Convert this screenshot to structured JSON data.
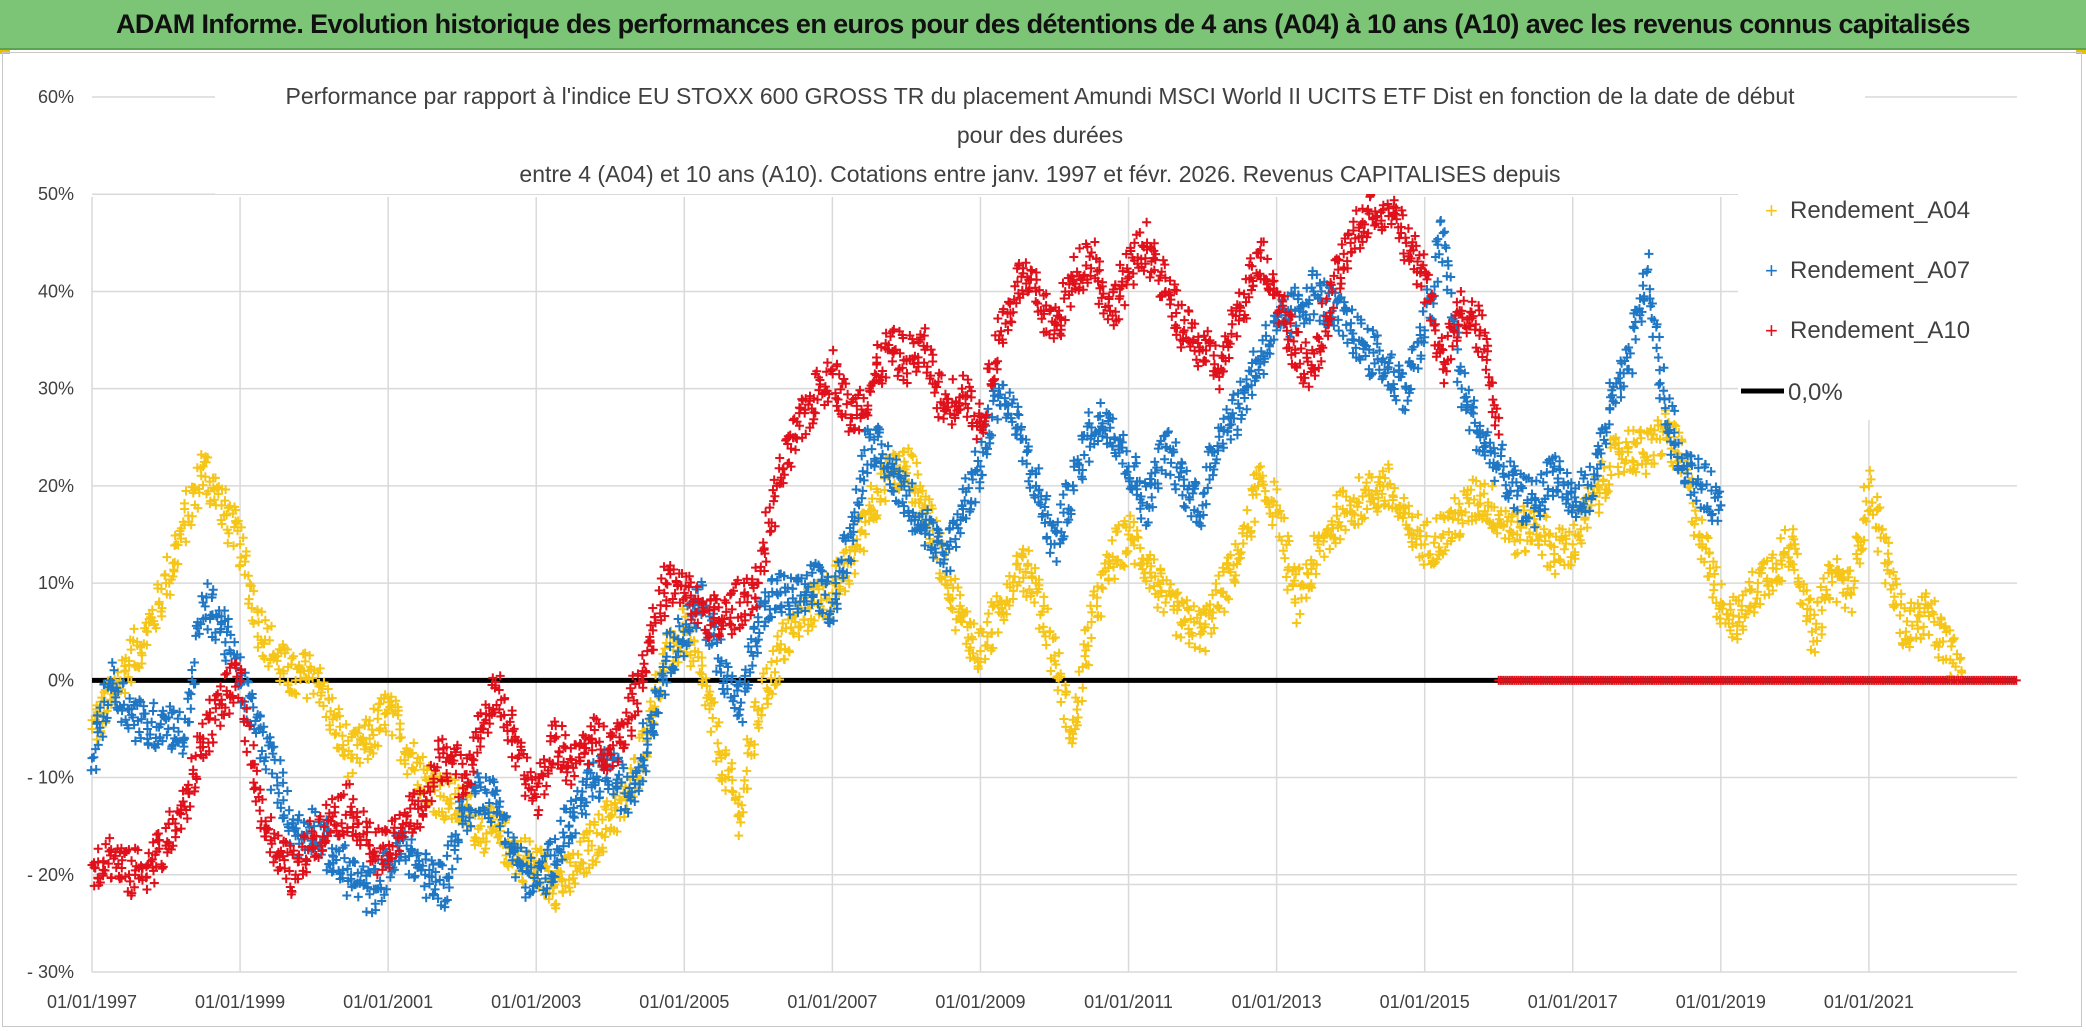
{
  "banner": {
    "title": "ADAM Informe. Evolution historique des performances en euros pour des détentions de 4 ans (A04) à 10 ans (A10) avec les revenus connus capitalisés"
  },
  "chart_data": {
    "type": "scatter",
    "title_lines": [
      "Performance par rapport à l'indice EU STOXX 600 GROSS TR  du placement Amundi MSCI World II UCITS ETF Dist en fonction de la date de début",
      "pour des durées",
      "entre 4 (A04) et 10 ans (A10). Cotations entre janv. 1997 et févr. 2026. Revenus CAPITALISES depuis"
    ],
    "x_tick_labels": [
      "01/01/1997",
      "01/01/1999",
      "01/01/2001",
      "01/01/2003",
      "01/01/2005",
      "01/01/2007",
      "01/01/2009",
      "01/01/2011",
      "01/01/2013",
      "01/01/2015",
      "01/01/2017",
      "01/01/2019",
      "01/01/2021"
    ],
    "xlim": [
      1997.0,
      2023.0
    ],
    "y_tick_labels": [
      "60%",
      "50%",
      "40%",
      "30%",
      "20%",
      "10%",
      "0%",
      "- 10%",
      "- 20%",
      "- 30%"
    ],
    "y_tick_values": [
      60,
      50,
      40,
      30,
      20,
      10,
      0,
      -10,
      -20,
      -30
    ],
    "ylim": [
      -30,
      60
    ],
    "ylabel": "",
    "xlabel": "",
    "grid": true,
    "legend_position": "top-right",
    "series": [
      {
        "name": "Rendement_A04",
        "color": "#f5c518",
        "marker": "+",
        "x": [
          1997.0,
          1997.25,
          1997.5,
          1997.75,
          1998.0,
          1998.25,
          1998.5,
          1998.75,
          1999.0,
          1999.25,
          1999.5,
          1999.75,
          2000.0,
          2000.25,
          2000.5,
          2000.75,
          2001.0,
          2001.25,
          2001.5,
          2001.75,
          2002.0,
          2002.25,
          2002.5,
          2002.75,
          2003.0,
          2003.25,
          2003.5,
          2003.75,
          2004.0,
          2004.25,
          2004.5,
          2004.75,
          2005.0,
          2005.25,
          2005.5,
          2005.75,
          2006.0,
          2006.25,
          2006.5,
          2006.75,
          2007.0,
          2007.25,
          2007.5,
          2007.75,
          2008.0,
          2008.25,
          2008.5,
          2008.75,
          2009.0,
          2009.25,
          2009.5,
          2009.75,
          2010.0,
          2010.25,
          2010.5,
          2010.75,
          2011.0,
          2011.25,
          2011.5,
          2011.75,
          2012.0,
          2012.25,
          2012.5,
          2012.75,
          2013.0,
          2013.25,
          2013.5,
          2013.75,
          2014.0,
          2014.25,
          2014.5,
          2014.75,
          2015.0,
          2015.25,
          2015.5,
          2015.75,
          2016.0,
          2016.25,
          2016.5,
          2016.75,
          2017.0,
          2017.25,
          2017.5,
          2017.75,
          2018.0,
          2018.25,
          2018.5,
          2018.75,
          2019.0,
          2019.25,
          2019.5,
          2019.75,
          2020.0,
          2020.25,
          2020.5,
          2020.75,
          2021.0,
          2021.25,
          2021.5,
          2021.75,
          2022.0,
          2022.25
        ],
        "y": [
          -5,
          -2,
          2,
          5,
          10,
          16,
          22,
          18,
          14,
          6,
          2,
          0,
          1,
          -4,
          -8,
          -6,
          -3,
          -7,
          -10,
          -12,
          -13,
          -15,
          -16,
          -18,
          -19,
          -21,
          -20,
          -17,
          -14,
          -12,
          -5,
          2,
          5,
          0,
          -8,
          -14,
          -3,
          2,
          6,
          8,
          9,
          12,
          18,
          21,
          22,
          18,
          12,
          6,
          3,
          7,
          12,
          10,
          2,
          -6,
          6,
          12,
          15,
          12,
          8,
          6,
          5,
          9,
          13,
          20,
          18,
          8,
          12,
          16,
          18,
          19,
          20,
          16,
          14,
          15,
          17,
          19,
          17,
          15,
          16,
          13,
          14,
          18,
          22,
          24,
          23,
          26,
          22,
          14,
          8,
          6,
          10,
          12,
          14,
          4,
          11,
          9,
          20,
          12,
          5,
          7,
          4,
          1
        ]
      },
      {
        "name": "Rendement_A07",
        "color": "#1f77c4",
        "marker": "+",
        "x": [
          1997.0,
          1997.25,
          1997.5,
          1997.75,
          1998.0,
          1998.25,
          1998.5,
          1998.75,
          1999.0,
          1999.25,
          1999.5,
          1999.75,
          2000.0,
          2000.25,
          2000.5,
          2000.75,
          2001.0,
          2001.25,
          2001.5,
          2001.75,
          2002.0,
          2002.25,
          2002.5,
          2002.75,
          2003.0,
          2003.25,
          2003.5,
          2003.75,
          2004.0,
          2004.25,
          2004.5,
          2004.75,
          2005.0,
          2005.25,
          2005.5,
          2005.75,
          2006.0,
          2006.25,
          2006.5,
          2006.75,
          2007.0,
          2007.25,
          2007.5,
          2007.75,
          2008.0,
          2008.25,
          2008.5,
          2008.75,
          2009.0,
          2009.25,
          2009.5,
          2009.75,
          2010.0,
          2010.25,
          2010.5,
          2010.75,
          2011.0,
          2011.25,
          2011.5,
          2011.75,
          2012.0,
          2012.25,
          2012.5,
          2012.75,
          2013.0,
          2013.25,
          2013.5,
          2013.75,
          2014.0,
          2014.25,
          2014.5,
          2014.75,
          2015.0,
          2015.25,
          2015.5,
          2015.75,
          2016.0,
          2016.25,
          2016.5,
          2016.75,
          2017.0,
          2017.25,
          2017.5,
          2017.75,
          2018.0,
          2018.25,
          2018.5,
          2018.75,
          2019.0
        ],
        "y": [
          -8,
          0,
          -3,
          -5,
          -4,
          -6,
          8,
          6,
          0,
          -5,
          -10,
          -16,
          -15,
          -18,
          -20,
          -22,
          -19,
          -17,
          -20,
          -21,
          -14,
          -11,
          -13,
          -19,
          -21,
          -18,
          -14,
          -11,
          -9,
          -12,
          -6,
          2,
          5,
          8,
          2,
          -3,
          6,
          9,
          8,
          10,
          8,
          15,
          25,
          22,
          19,
          16,
          12,
          18,
          22,
          30,
          26,
          20,
          14,
          20,
          26,
          27,
          22,
          18,
          24,
          20,
          18,
          26,
          28,
          33,
          36,
          38,
          40,
          38,
          36,
          34,
          32,
          30,
          36,
          46,
          30,
          25,
          22,
          19,
          18,
          22,
          18,
          20,
          28,
          32,
          42,
          28,
          22,
          20,
          18
        ]
      },
      {
        "name": "Rendement_A10",
        "color": "#e0111b",
        "marker": "+",
        "x": [
          1997.0,
          1997.25,
          1997.5,
          1997.75,
          1998.0,
          1998.25,
          1998.5,
          1998.75,
          1999.0,
          1999.25,
          1999.5,
          1999.75,
          2000.0,
          2000.25,
          2000.5,
          2000.75,
          2001.0,
          2001.25,
          2001.5,
          2001.75,
          2002.0,
          2002.25,
          2002.5,
          2002.75,
          2003.0,
          2003.25,
          2003.5,
          2003.75,
          2004.0,
          2004.25,
          2004.5,
          2004.75,
          2005.0,
          2005.25,
          2005.5,
          2005.75,
          2006.0,
          2006.25,
          2006.5,
          2006.75,
          2007.0,
          2007.25,
          2007.5,
          2007.75,
          2008.0,
          2008.25,
          2008.5,
          2008.75,
          2009.0,
          2009.25,
          2009.5,
          2009.75,
          2010.0,
          2010.25,
          2010.5,
          2010.75,
          2011.0,
          2011.25,
          2011.5,
          2011.75,
          2012.0,
          2012.25,
          2012.5,
          2012.75,
          2013.0,
          2013.25,
          2013.5,
          2013.75,
          2014.0,
          2014.25,
          2014.5,
          2014.75,
          2015.0,
          2015.25,
          2015.5,
          2015.75,
          2016.0
        ],
        "y": [
          -19,
          -18,
          -20,
          -19,
          -17,
          -13,
          -6,
          -2,
          0,
          -12,
          -18,
          -20,
          -16,
          -14,
          -13,
          -17,
          -18,
          -14,
          -13,
          -7,
          -10,
          -5,
          -1,
          -8,
          -12,
          -6,
          -9,
          -6,
          -7,
          -4,
          3,
          10,
          9,
          7,
          6,
          8,
          10,
          20,
          25,
          29,
          32,
          27,
          30,
          34,
          33,
          34,
          28,
          30,
          26,
          35,
          41,
          40,
          36,
          41,
          44,
          38,
          42,
          45,
          40,
          36,
          34,
          32,
          38,
          44,
          40,
          34,
          32,
          40,
          45,
          48,
          49,
          45,
          42,
          32,
          38,
          36,
          27
        ]
      },
      {
        "name": "0,0%",
        "color": "#000000",
        "type": "line",
        "x": [
          1997.0,
          2023.0
        ],
        "y": [
          0,
          0
        ]
      }
    ],
    "zero_markers": {
      "name": "Rendement_A10",
      "color": "#e0111b",
      "x_from": 2016.0,
      "x_to": 2023.0,
      "y": 0
    }
  }
}
